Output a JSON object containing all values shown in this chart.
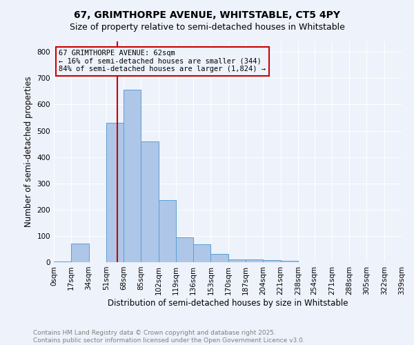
{
  "title_line1": "67, GRIMTHORPE AVENUE, WHITSTABLE, CT5 4PY",
  "title_line2": "Size of property relative to semi-detached houses in Whitstable",
  "xlabel": "Distribution of semi-detached houses by size in Whitstable",
  "ylabel": "Number of semi-detached properties",
  "bin_labels": [
    "0sqm",
    "17sqm",
    "34sqm",
    "51sqm",
    "68sqm",
    "85sqm",
    "102sqm",
    "119sqm",
    "136sqm",
    "153sqm",
    "170sqm",
    "187sqm",
    "204sqm",
    "221sqm",
    "238sqm",
    "254sqm",
    "271sqm",
    "288sqm",
    "305sqm",
    "322sqm",
    "339sqm"
  ],
  "bin_edges": [
    0,
    17,
    34,
    51,
    68,
    85,
    102,
    119,
    136,
    153,
    170,
    187,
    204,
    221,
    238,
    254,
    271,
    288,
    305,
    322,
    339
  ],
  "bar_heights": [
    3,
    72,
    0,
    530,
    655,
    460,
    236,
    94,
    68,
    32,
    10,
    10,
    8,
    5,
    0,
    0,
    0,
    0,
    0,
    0
  ],
  "bar_color": "#aec6e8",
  "bar_edge_color": "#5a9fd4",
  "property_size": 62,
  "vline_color": "#cc0000",
  "annotation_line1": "67 GRIMTHORPE AVENUE: 62sqm",
  "annotation_line2": "← 16% of semi-detached houses are smaller (344)",
  "annotation_line3": "84% of semi-detached houses are larger (1,824) →",
  "annotation_box_color": "#cc0000",
  "ylim": [
    0,
    840
  ],
  "yticks": [
    0,
    100,
    200,
    300,
    400,
    500,
    600,
    700,
    800
  ],
  "footer_line1": "Contains HM Land Registry data © Crown copyright and database right 2025.",
  "footer_line2": "Contains public sector information licensed under the Open Government Licence v3.0.",
  "bg_color": "#eef2fb",
  "grid_color": "#ffffff",
  "title_fontsize": 10,
  "subtitle_fontsize": 9,
  "axis_label_fontsize": 8.5,
  "tick_fontsize": 7.5,
  "annotation_fontsize": 7.5,
  "footer_fontsize": 6.5
}
